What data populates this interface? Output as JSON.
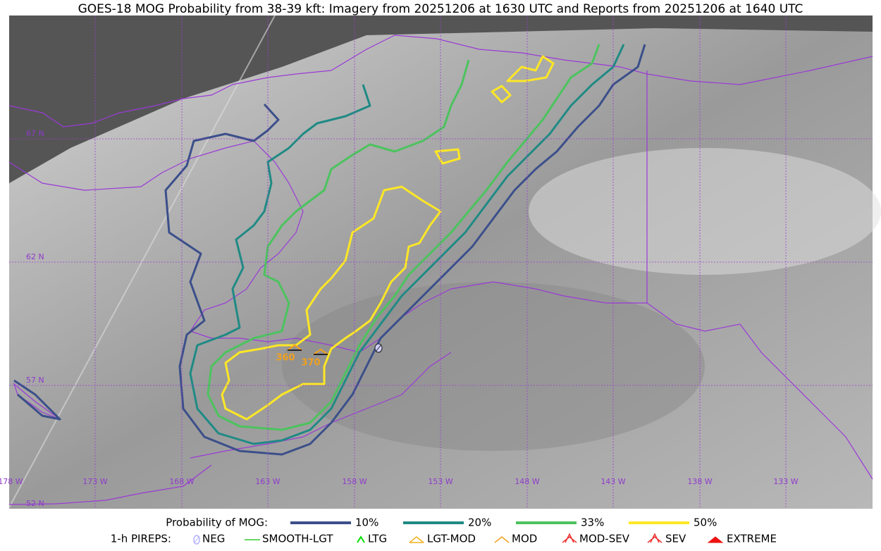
{
  "title": "GOES-18 MOG Probability from 38-39 kft: Imagery from 20251206 at 1630 UTC and Reports from 20251206 at 1640 UTC",
  "latitude_labels": [
    "67 N",
    "62 N",
    "57 N",
    "52 N"
  ],
  "longitude_labels": [
    "178 W",
    "173 W",
    "168 W",
    "163 W",
    "158 W",
    "153 W",
    "148 W",
    "143 W",
    "138 W",
    "133 W"
  ],
  "reports": [
    {
      "label": "360"
    },
    {
      "label": "370"
    }
  ],
  "legend": {
    "probability_title": "Probability of MOG:",
    "probability_items": [
      {
        "label": "10%",
        "color": "#3b4f8a"
      },
      {
        "label": "20%",
        "color": "#1f8a84"
      },
      {
        "label": "33%",
        "color": "#4cc35e"
      },
      {
        "label": "50%",
        "color": "#fde725"
      }
    ],
    "pireps_title": "1-h PIREPS:",
    "pirep_items": [
      {
        "label": "NEG",
        "color": "#b0b0ff"
      },
      {
        "label": "SMOOTH-LGT",
        "color": "#33cc33"
      },
      {
        "label": "LTG",
        "color": "#00dd00"
      },
      {
        "label": "LGT-MOD",
        "color": "#f0b020"
      },
      {
        "label": "MOD",
        "color": "#f0a020"
      },
      {
        "label": "MOD-SEV",
        "color": "#ee3333"
      },
      {
        "label": "SEV",
        "color": "#ee3333"
      },
      {
        "label": "EXTREME",
        "color": "#ee1111"
      }
    ]
  }
}
